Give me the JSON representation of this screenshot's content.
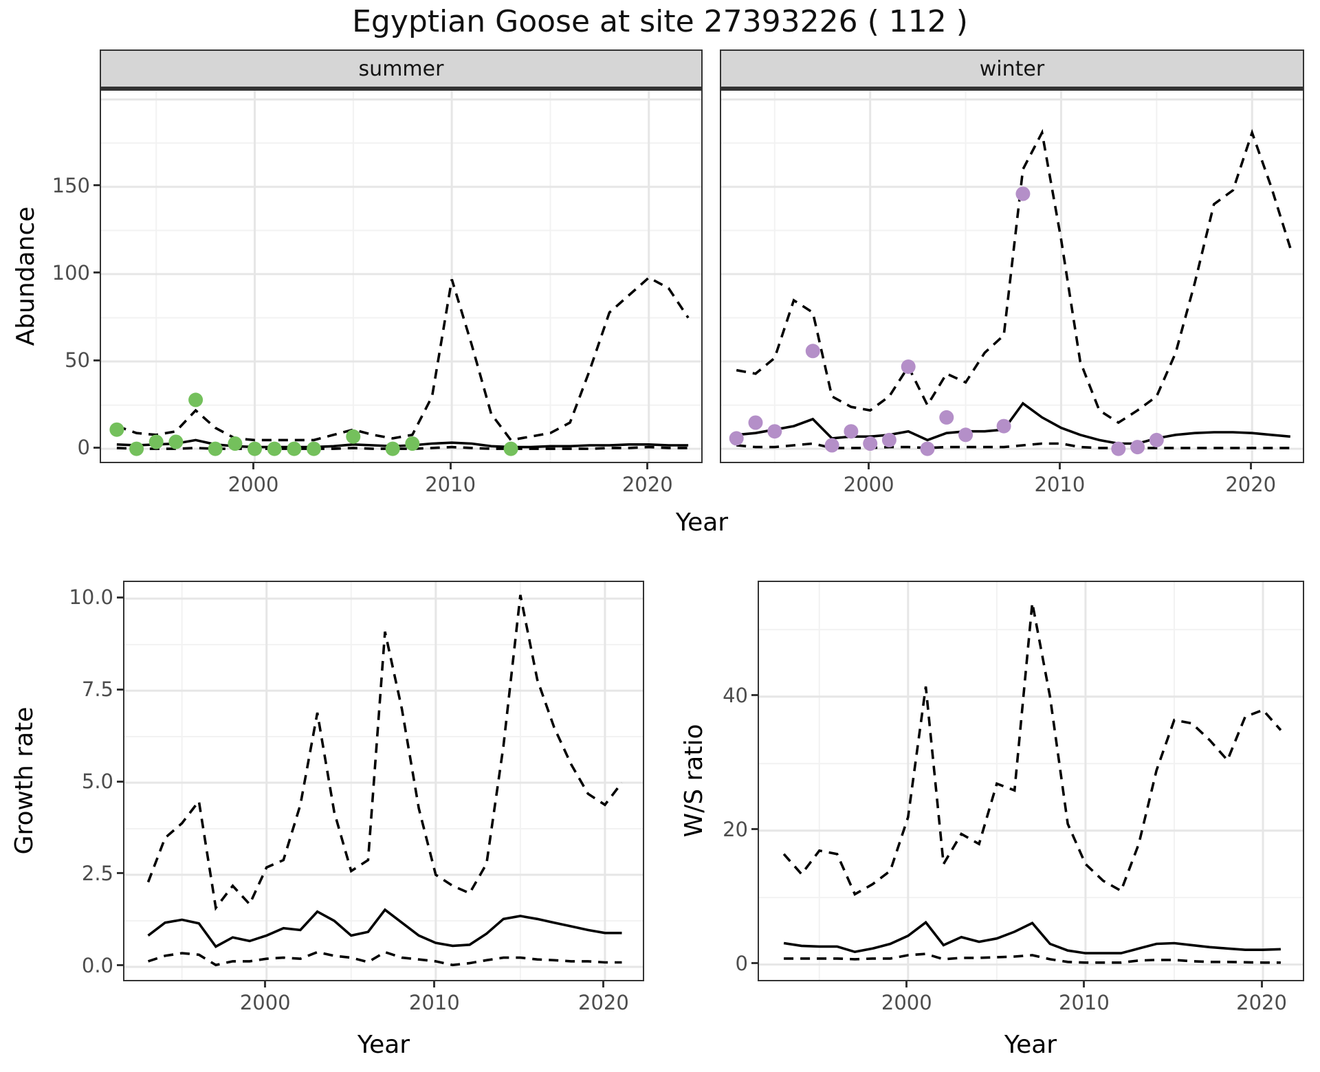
{
  "title": "Egyptian Goose at site 27393226 ( 112 )",
  "facets": [
    "summer",
    "winter"
  ],
  "axis_titles": {
    "abundance_y": "Abundance",
    "top_x": "Year",
    "growth_y": "Growth rate",
    "growth_x": "Year",
    "ws_y": "W/S ratio",
    "ws_x": "Year"
  },
  "colors": {
    "summer_point": "#74c05c",
    "winter_point": "#b48fc8",
    "line": "#000000",
    "strip_bg": "#d6d6d6",
    "panel_border": "#333333",
    "grid_major": "#e6e6e6",
    "grid_minor": "#f2f2f2",
    "axis_text": "#4d4d4d"
  },
  "chart_data": [
    {
      "id": "summer",
      "type": "line",
      "facet_label": "summer",
      "xlabel": "Year",
      "ylabel": "Abundance",
      "xlim": [
        1992.2,
        2022.8
      ],
      "ylim": [
        -9,
        205
      ],
      "x_ticks": [
        2000,
        2010,
        2020
      ],
      "x_tick_labels": [
        "2000",
        "2010",
        "2020"
      ],
      "x_minor": [
        1995,
        2005,
        2015
      ],
      "y_ticks": [
        0,
        50,
        100,
        150
      ],
      "y_tick_labels": [
        "0",
        "50",
        "100",
        "150"
      ],
      "y_minor": [
        25,
        75,
        125,
        175
      ],
      "y_extra_major": [
        200
      ],
      "show_y_tick_labels": true,
      "years": [
        1993,
        1994,
        1995,
        1996,
        1997,
        1998,
        1999,
        2000,
        2001,
        2002,
        2003,
        2004,
        2005,
        2006,
        2007,
        2008,
        2009,
        2010,
        2011,
        2012,
        2013,
        2014,
        2015,
        2016,
        2017,
        2018,
        2019,
        2020,
        2021,
        2022
      ],
      "series": [
        {
          "name": "upper-credible-bound",
          "style": "dashed",
          "values": [
            13,
            9,
            8,
            10,
            22,
            12,
            6,
            5,
            5,
            5,
            5,
            8,
            11,
            8,
            6,
            8,
            30,
            97,
            60,
            20,
            5,
            7,
            9,
            15,
            45,
            78,
            88,
            98,
            92,
            75
          ]
        },
        {
          "name": "model-median",
          "style": "solid",
          "values": [
            2.5,
            2,
            2.5,
            3,
            5,
            2.5,
            1.5,
            1,
            1,
            1,
            1,
            1.5,
            2.5,
            2,
            1.5,
            2,
            3,
            3.5,
            3,
            1.5,
            1,
            1,
            1.5,
            1.5,
            2,
            2,
            2.5,
            2.5,
            2,
            2
          ]
        },
        {
          "name": "lower-credible-bound",
          "style": "dashed",
          "values": [
            0.5,
            0,
            0,
            0,
            0.5,
            0,
            0,
            0,
            0,
            0,
            0,
            0,
            0.5,
            0,
            0,
            0,
            0.5,
            1,
            0.5,
            0,
            0,
            0,
            0,
            0,
            0,
            0.5,
            0.5,
            1,
            0.5,
            0.5
          ]
        }
      ],
      "points": {
        "name": "observed-count",
        "color": "#74c05c",
        "x": [
          1993,
          1994,
          1995,
          1996,
          1997,
          1998,
          1999,
          2000,
          2001,
          2002,
          2003,
          2005,
          2007,
          2008,
          2013
        ],
        "y": [
          11,
          0,
          4,
          4,
          28,
          0,
          3,
          0,
          0,
          0,
          0,
          7,
          0,
          3,
          0
        ]
      }
    },
    {
      "id": "winter",
      "type": "line",
      "facet_label": "winter",
      "xlabel": "Year",
      "ylabel": "Abundance",
      "xlim": [
        1992.2,
        2022.8
      ],
      "ylim": [
        -9,
        205
      ],
      "x_ticks": [
        2000,
        2010,
        2020
      ],
      "x_tick_labels": [
        "2000",
        "2010",
        "2020"
      ],
      "x_minor": [
        1995,
        2005,
        2015
      ],
      "y_ticks": [
        0,
        50,
        100,
        150
      ],
      "y_tick_labels": [
        "0",
        "50",
        "100",
        "150"
      ],
      "y_minor": [
        25,
        75,
        125,
        175
      ],
      "y_extra_major": [
        200
      ],
      "show_y_tick_labels": false,
      "years": [
        1993,
        1994,
        1995,
        1996,
        1997,
        1998,
        1999,
        2000,
        2001,
        2002,
        2003,
        2004,
        2005,
        2006,
        2007,
        2008,
        2009,
        2010,
        2011,
        2012,
        2013,
        2014,
        2015,
        2016,
        2017,
        2018,
        2019,
        2020,
        2021,
        2022
      ],
      "series": [
        {
          "name": "upper-credible-bound",
          "style": "dashed",
          "values": [
            45,
            43,
            52,
            85,
            78,
            30,
            24,
            22,
            30,
            47,
            25,
            43,
            38,
            55,
            65,
            160,
            181,
            120,
            50,
            22,
            15,
            22,
            30,
            55,
            95,
            140,
            148,
            181,
            150,
            115
          ]
        },
        {
          "name": "model-median",
          "style": "solid",
          "values": [
            8,
            9,
            11,
            13,
            17,
            6,
            7,
            7,
            8,
            10,
            5,
            9,
            10,
            10,
            11,
            26,
            18,
            12,
            8,
            5,
            3,
            3,
            6,
            8,
            9,
            9.5,
            9.5,
            9,
            8,
            7
          ]
        },
        {
          "name": "lower-credible-bound",
          "style": "dashed",
          "values": [
            2,
            1,
            1,
            2,
            3,
            0.5,
            0.5,
            0.5,
            1,
            1,
            0.5,
            1,
            1,
            1,
            1,
            2,
            3,
            3,
            1,
            0.5,
            0.5,
            0.5,
            0.5,
            0.5,
            0.5,
            0.5,
            0.5,
            0.5,
            0.5,
            0.5
          ]
        }
      ],
      "points": {
        "name": "observed-count",
        "color": "#b48fc8",
        "x": [
          1993,
          1994,
          1995,
          1997,
          1998,
          1999,
          2000,
          2001,
          2002,
          2003,
          2004,
          2005,
          2007,
          2008,
          2013,
          2014,
          2015
        ],
        "y": [
          6,
          15,
          10,
          56,
          2,
          10,
          3,
          5,
          47,
          0,
          18,
          8,
          13,
          146,
          0,
          1,
          5
        ]
      }
    },
    {
      "id": "growth",
      "type": "line",
      "facet_label": "",
      "xlabel": "Year",
      "ylabel": "Growth rate",
      "xlim": [
        1991.6,
        2022.4
      ],
      "ylim": [
        -0.43,
        10.45
      ],
      "x_ticks": [
        2000,
        2010,
        2020
      ],
      "x_tick_labels": [
        "2000",
        "2010",
        "2020"
      ],
      "x_minor": [
        1995,
        2005,
        2015
      ],
      "y_ticks": [
        0,
        2.5,
        5,
        7.5,
        10
      ],
      "y_tick_labels": [
        "0.0",
        "2.5",
        "5.0",
        "7.5",
        "10.0"
      ],
      "y_minor": [
        1.25,
        3.75,
        6.25,
        8.75
      ],
      "y_extra_major": [],
      "show_y_tick_labels": true,
      "years": [
        1993,
        1994,
        1995,
        1996,
        1997,
        1998,
        1999,
        2000,
        2001,
        2002,
        2003,
        2004,
        2005,
        2006,
        2007,
        2008,
        2009,
        2010,
        2011,
        2012,
        2013,
        2014,
        2015,
        2016,
        2017,
        2018,
        2019,
        2020,
        2021
      ],
      "series": [
        {
          "name": "upper-credible-bound",
          "style": "dashed",
          "values": [
            2.3,
            3.5,
            3.9,
            4.5,
            1.6,
            2.2,
            1.7,
            2.7,
            2.9,
            4.4,
            6.9,
            4.2,
            2.6,
            2.9,
            9.1,
            7.0,
            4.3,
            2.5,
            2.2,
            2.0,
            2.8,
            6.0,
            10.1,
            7.8,
            6.5,
            5.5,
            4.7,
            4.4,
            5.0
          ]
        },
        {
          "name": "model-median",
          "style": "solid",
          "values": [
            0.85,
            1.2,
            1.28,
            1.18,
            0.55,
            0.8,
            0.7,
            0.85,
            1.05,
            1.0,
            1.5,
            1.25,
            0.85,
            0.95,
            1.55,
            1.2,
            0.85,
            0.65,
            0.57,
            0.6,
            0.9,
            1.3,
            1.38,
            1.3,
            1.2,
            1.1,
            1.0,
            0.92,
            0.92
          ]
        },
        {
          "name": "lower-credible-bound",
          "style": "dashed",
          "values": [
            0.15,
            0.3,
            0.37,
            0.33,
            0.05,
            0.15,
            0.15,
            0.22,
            0.25,
            0.22,
            0.4,
            0.3,
            0.25,
            0.13,
            0.4,
            0.25,
            0.2,
            0.15,
            0.05,
            0.1,
            0.18,
            0.25,
            0.25,
            0.2,
            0.18,
            0.15,
            0.15,
            0.12,
            0.12
          ]
        }
      ],
      "points": null
    },
    {
      "id": "ws",
      "type": "line",
      "facet_label": "",
      "xlabel": "Year",
      "ylabel": "W/S ratio",
      "xlim": [
        1991.6,
        2022.4
      ],
      "ylim": [
        -2.7,
        57.1
      ],
      "x_ticks": [
        2000,
        2010,
        2020
      ],
      "x_tick_labels": [
        "2000",
        "2010",
        "2020"
      ],
      "x_minor": [
        1995,
        2005,
        2015
      ],
      "y_ticks": [
        0,
        20,
        40
      ],
      "y_tick_labels": [
        "0",
        "20",
        "40"
      ],
      "y_minor": [
        10,
        30,
        50
      ],
      "y_extra_major": [],
      "show_y_tick_labels": true,
      "years": [
        1993,
        1994,
        1995,
        1996,
        1997,
        1998,
        1999,
        2000,
        2001,
        2002,
        2003,
        2004,
        2005,
        2006,
        2007,
        2008,
        2009,
        2010,
        2011,
        2012,
        2013,
        2014,
        2015,
        2016,
        2017,
        2018,
        2019,
        2020,
        2021
      ],
      "series": [
        {
          "name": "upper-credible-bound",
          "style": "dashed",
          "values": [
            16.5,
            13.5,
            17,
            16.5,
            10.5,
            12,
            14,
            22,
            41.5,
            15,
            19.5,
            18,
            27,
            26,
            54,
            40,
            21,
            15,
            12.5,
            11,
            18,
            29,
            36.5,
            36,
            33.5,
            30.5,
            37,
            38,
            35
          ]
        },
        {
          "name": "model-median",
          "style": "solid",
          "values": [
            3.2,
            2.8,
            2.7,
            2.7,
            1.9,
            2.4,
            3.1,
            4.3,
            6.3,
            2.9,
            4.1,
            3.4,
            3.9,
            4.9,
            6.2,
            3.1,
            2.1,
            1.7,
            1.7,
            1.7,
            2.4,
            3.1,
            3.2,
            2.9,
            2.6,
            2.4,
            2.2,
            2.2,
            2.3
          ]
        },
        {
          "name": "lower-credible-bound",
          "style": "dashed",
          "values": [
            0.9,
            0.9,
            0.9,
            0.9,
            0.8,
            0.9,
            0.9,
            1.4,
            1.6,
            0.8,
            1.0,
            1.0,
            1.1,
            1.2,
            1.4,
            0.8,
            0.4,
            0.3,
            0.3,
            0.3,
            0.6,
            0.7,
            0.7,
            0.5,
            0.4,
            0.4,
            0.35,
            0.3,
            0.3
          ]
        }
      ],
      "points": null
    }
  ]
}
